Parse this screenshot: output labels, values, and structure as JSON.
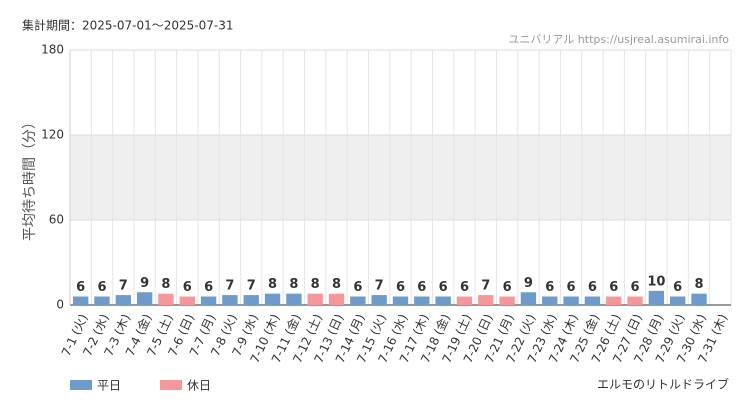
{
  "chart_data": {
    "type": "bar",
    "title": "集計期間：2025-07-01〜2025-07-31",
    "source": "ユニバリアル https://usjreal.asumirai.info",
    "attraction": "エルモのリトルドライブ",
    "y_label": "平均待ち時間（分）",
    "categories": [
      "7-1 (火)",
      "7-2 (水)",
      "7-3 (木)",
      "7-4 (金)",
      "7-5 (土)",
      "7-6 (日)",
      "7-7 (月)",
      "7-8 (火)",
      "7-9 (水)",
      "7-10 (木)",
      "7-11 (金)",
      "7-12 (土)",
      "7-13 (日)",
      "7-14 (月)",
      "7-15 (火)",
      "7-16 (水)",
      "7-17 (木)",
      "7-18 (金)",
      "7-19 (土)",
      "7-20 (日)",
      "7-21 (月)",
      "7-22 (火)",
      "7-23 (水)",
      "7-24 (木)",
      "7-25 (金)",
      "7-26 (土)",
      "7-27 (日)",
      "7-28 (月)",
      "7-29 (火)",
      "7-30 (水)",
      "7-31 (木)"
    ],
    "series": [
      {
        "name": "平日",
        "color": "#6e9bc9",
        "label_color": "#5a84b5",
        "values": [
          6,
          6,
          7,
          9,
          null,
          null,
          6,
          7,
          7,
          8,
          8,
          null,
          null,
          6,
          7,
          6,
          6,
          6,
          null,
          null,
          null,
          9,
          6,
          6,
          6,
          null,
          null,
          10,
          6,
          8,
          null
        ]
      },
      {
        "name": "休日",
        "color": "#f5989b",
        "label_color": "#f07f84",
        "values": [
          null,
          null,
          null,
          null,
          8,
          6,
          null,
          null,
          null,
          null,
          null,
          8,
          8,
          null,
          null,
          null,
          null,
          null,
          6,
          7,
          6,
          null,
          null,
          null,
          null,
          6,
          6,
          null,
          null,
          null,
          null
        ]
      }
    ],
    "ylim": [
      0,
      180
    ],
    "yticks": [
      0,
      60,
      120,
      180
    ],
    "grid": true,
    "shaded_range": [
      60,
      120
    ]
  }
}
